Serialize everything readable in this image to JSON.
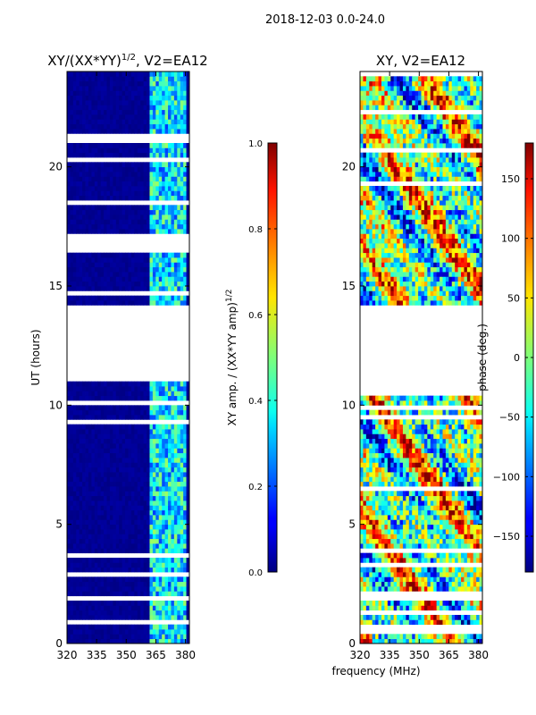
{
  "suptitle": "2018-12-03 0.0-24.0",
  "shared_xlabel": "frequency (MHz)",
  "chart_data": [
    {
      "type": "heatmap",
      "title": "XY/(XX*YY)^1/2, V2=EA12",
      "title_main": "XY/(XX*YY)",
      "title_sup": "1/2",
      "title_tail": ", V2=EA12",
      "xlabel": "frequency (MHz)",
      "ylabel": "UT (hours)",
      "xlim": [
        320,
        382
      ],
      "ylim": [
        0,
        24
      ],
      "xticks": [
        320,
        335,
        350,
        365,
        380
      ],
      "yticks": [
        0,
        5,
        10,
        15,
        20
      ],
      "colormap": "jet",
      "quantity": "amplitude",
      "data_time_ranges": [
        [
          0,
          11
        ],
        [
          14.2,
          24
        ]
      ],
      "bright_channel_band_mhz": [
        362,
        381
      ],
      "colorbar": {
        "label_main": "XY amp. / (XX*YY amp)",
        "label_sup": "1/2",
        "range": [
          0.0,
          1.0
        ],
        "ticks": [
          0.0,
          0.2,
          0.4,
          0.6,
          0.8,
          1.0
        ],
        "tick_labels": [
          "0.0",
          "0.2",
          "0.4",
          "0.6",
          "0.8",
          "1.0"
        ]
      }
    },
    {
      "type": "heatmap",
      "title": "XY, V2=EA12",
      "xlabel": "frequency (MHz)",
      "ylabel": "",
      "xlim": [
        320,
        382
      ],
      "ylim": [
        0,
        24
      ],
      "xticks": [
        320,
        335,
        350,
        365,
        380
      ],
      "yticks": [
        0,
        5,
        10,
        15,
        20
      ],
      "colormap": "jet",
      "quantity": "phase",
      "data_time_ranges": [
        [
          0,
          11
        ],
        [
          14.2,
          24
        ]
      ],
      "colorbar": {
        "label": "phase (deg.)",
        "range": [
          -180,
          180
        ],
        "ticks": [
          -150,
          -100,
          -50,
          0,
          50,
          100,
          150
        ],
        "tick_labels": [
          "−150",
          "−100",
          "−50",
          "0",
          "50",
          "100",
          "150"
        ]
      }
    }
  ]
}
